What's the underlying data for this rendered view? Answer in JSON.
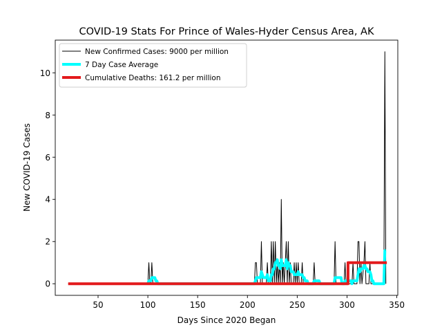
{
  "chart_data": {
    "type": "line",
    "title": "COVID-19 Stats For Prince of Wales-Hyder Census Area, AK",
    "xlabel": "Days Since 2020 Began",
    "ylabel": "New COVID-19 Cases",
    "xlim": [
      7,
      351
    ],
    "ylim": [
      -0.55,
      11.55
    ],
    "x_ticks": [
      50,
      100,
      150,
      200,
      250,
      300,
      350
    ],
    "y_ticks": [
      0,
      2,
      4,
      6,
      8,
      10
    ],
    "grid": false,
    "legend_position": "top-left",
    "series": [
      {
        "name": "New Confirmed Cases: 9000 per million",
        "color": "#000000",
        "style": "thin",
        "points": [
          [
            20,
            0
          ],
          [
            100,
            0
          ],
          [
            101,
            1
          ],
          [
            102,
            0
          ],
          [
            103,
            0
          ],
          [
            104,
            1
          ],
          [
            105,
            0
          ],
          [
            207,
            0
          ],
          [
            208,
            1
          ],
          [
            209,
            1
          ],
          [
            210,
            0
          ],
          [
            213,
            0
          ],
          [
            214,
            2
          ],
          [
            215,
            0
          ],
          [
            219,
            0
          ],
          [
            220,
            1
          ],
          [
            221,
            0
          ],
          [
            223,
            0
          ],
          [
            224,
            2
          ],
          [
            225,
            0
          ],
          [
            226,
            2
          ],
          [
            227,
            0
          ],
          [
            228,
            2
          ],
          [
            229,
            0
          ],
          [
            230,
            1
          ],
          [
            231,
            0
          ],
          [
            232,
            1
          ],
          [
            233,
            0
          ],
          [
            234,
            4
          ],
          [
            235,
            0
          ],
          [
            236,
            1
          ],
          [
            237,
            0
          ],
          [
            238,
            1
          ],
          [
            239,
            2
          ],
          [
            240,
            0
          ],
          [
            241,
            2
          ],
          [
            242,
            0
          ],
          [
            243,
            1
          ],
          [
            244,
            0
          ],
          [
            246,
            0
          ],
          [
            247,
            1
          ],
          [
            248,
            0
          ],
          [
            249,
            1
          ],
          [
            250,
            0
          ],
          [
            251,
            1
          ],
          [
            252,
            0
          ],
          [
            254,
            0
          ],
          [
            255,
            1
          ],
          [
            256,
            0
          ],
          [
            258,
            0
          ],
          [
            259,
            0
          ],
          [
            260,
            0
          ],
          [
            266,
            0
          ],
          [
            267,
            1
          ],
          [
            268,
            0
          ],
          [
            287,
            0
          ],
          [
            288,
            2
          ],
          [
            289,
            0
          ],
          [
            297,
            0
          ],
          [
            298,
            1
          ],
          [
            299,
            0
          ],
          [
            305,
            0
          ],
          [
            306,
            1
          ],
          [
            307,
            0
          ],
          [
            310,
            0
          ],
          [
            311,
            2
          ],
          [
            312,
            2
          ],
          [
            313,
            0
          ],
          [
            314,
            1
          ],
          [
            315,
            0
          ],
          [
            317,
            1
          ],
          [
            318,
            2
          ],
          [
            319,
            0
          ],
          [
            322,
            0
          ],
          [
            323,
            1
          ],
          [
            324,
            0
          ],
          [
            337,
            0
          ],
          [
            338,
            11
          ],
          [
            339,
            0
          ]
        ]
      },
      {
        "name": "7 Day Case Average",
        "color": "#00ffff",
        "style": "thick",
        "points": [
          [
            100,
            0
          ],
          [
            101,
            0.14
          ],
          [
            102,
            0.14
          ],
          [
            103,
            0.14
          ],
          [
            104,
            0.29
          ],
          [
            105,
            0.29
          ],
          [
            106,
            0.29
          ],
          [
            107,
            0.29
          ],
          [
            108,
            0.14
          ],
          [
            109,
            0.14
          ],
          [
            110,
            0
          ],
          [
            207,
            0
          ],
          [
            208,
            0.14
          ],
          [
            209,
            0.29
          ],
          [
            210,
            0.29
          ],
          [
            211,
            0.29
          ],
          [
            212,
            0.29
          ],
          [
            213,
            0.29
          ],
          [
            214,
            0.57
          ],
          [
            215,
            0.43
          ],
          [
            216,
            0.29
          ],
          [
            217,
            0.29
          ],
          [
            218,
            0.29
          ],
          [
            219,
            0.29
          ],
          [
            220,
            0.43
          ],
          [
            221,
            0.14
          ],
          [
            222,
            0.14
          ],
          [
            223,
            0.14
          ],
          [
            224,
            0.43
          ],
          [
            225,
            0.43
          ],
          [
            226,
            0.71
          ],
          [
            227,
            0.71
          ],
          [
            228,
            1.0
          ],
          [
            229,
            1.0
          ],
          [
            230,
            1.14
          ],
          [
            231,
            0.86
          ],
          [
            232,
            0.86
          ],
          [
            233,
            0.71
          ],
          [
            234,
            1.14
          ],
          [
            235,
            0.86
          ],
          [
            236,
            0.86
          ],
          [
            237,
            0.86
          ],
          [
            238,
            0.86
          ],
          [
            239,
            1.14
          ],
          [
            240,
            0.71
          ],
          [
            241,
            1.0
          ],
          [
            242,
            0.86
          ],
          [
            243,
            0.86
          ],
          [
            244,
            0.57
          ],
          [
            245,
            0.57
          ],
          [
            246,
            0.57
          ],
          [
            247,
            0.43
          ],
          [
            248,
            0.43
          ],
          [
            249,
            0.43
          ],
          [
            250,
            0.43
          ],
          [
            251,
            0.57
          ],
          [
            252,
            0.43
          ],
          [
            253,
            0.43
          ],
          [
            254,
            0.43
          ],
          [
            255,
            0.43
          ],
          [
            256,
            0.29
          ],
          [
            257,
            0.29
          ],
          [
            258,
            0.14
          ],
          [
            259,
            0.14
          ],
          [
            260,
            0.14
          ],
          [
            261,
            0
          ],
          [
            266,
            0
          ],
          [
            267,
            0.14
          ],
          [
            268,
            0.14
          ],
          [
            269,
            0.14
          ],
          [
            270,
            0.14
          ],
          [
            271,
            0.14
          ],
          [
            272,
            0.14
          ],
          [
            273,
            0
          ],
          [
            287,
            0
          ],
          [
            288,
            0.29
          ],
          [
            289,
            0.29
          ],
          [
            290,
            0.29
          ],
          [
            291,
            0.29
          ],
          [
            292,
            0.29
          ],
          [
            293,
            0.29
          ],
          [
            294,
            0.29
          ],
          [
            295,
            0
          ],
          [
            297,
            0
          ],
          [
            298,
            0.14
          ],
          [
            299,
            0.14
          ],
          [
            300,
            0.14
          ],
          [
            301,
            0.14
          ],
          [
            302,
            0.14
          ],
          [
            303,
            0.14
          ],
          [
            304,
            0.14
          ],
          [
            305,
            0
          ],
          [
            306,
            0.14
          ],
          [
            307,
            0.14
          ],
          [
            308,
            0.14
          ],
          [
            309,
            0.14
          ],
          [
            310,
            0.14
          ],
          [
            311,
            0.43
          ],
          [
            312,
            0.71
          ],
          [
            313,
            0.57
          ],
          [
            314,
            0.71
          ],
          [
            315,
            0.71
          ],
          [
            316,
            0.71
          ],
          [
            317,
            0.86
          ],
          [
            318,
            0.86
          ],
          [
            319,
            0.71
          ],
          [
            320,
            0.71
          ],
          [
            321,
            0.57
          ],
          [
            322,
            0.57
          ],
          [
            323,
            0.57
          ],
          [
            324,
            0.43
          ],
          [
            325,
            0.14
          ],
          [
            326,
            0.14
          ],
          [
            327,
            0
          ],
          [
            337,
            0
          ],
          [
            338,
            1.57
          ],
          [
            339,
            1.57
          ]
        ]
      },
      {
        "name": "Cumulative Deaths: 161.2 per million",
        "color": "#e31a1c",
        "style": "thick",
        "points": [
          [
            20,
            0
          ],
          [
            301,
            0
          ],
          [
            301,
            1
          ],
          [
            340,
            1
          ]
        ]
      }
    ]
  }
}
